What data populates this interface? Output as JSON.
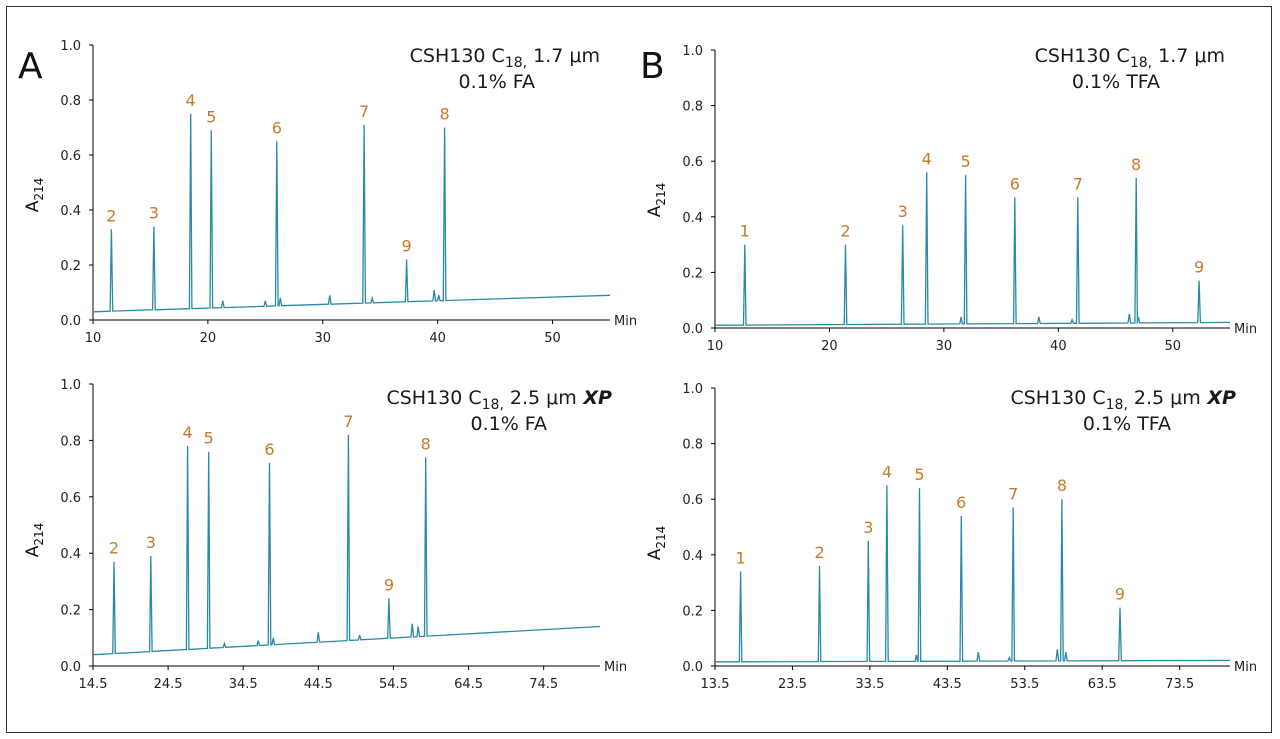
{
  "colors": {
    "trace": "#2a8aa3",
    "peak_label": "#c87a2a"
  },
  "chart_data": [
    {
      "type": "line",
      "panel_letter": "A",
      "annotation": {
        "column": "CSH130 C",
        "sub": "18,",
        "size": "1.7 μm",
        "xp": "",
        "modifier": "0.1% FA"
      },
      "xlabel": "Min",
      "ylabel": "A",
      "ylabel_sub": "214",
      "xlim": [
        10,
        55
      ],
      "ylim": [
        0,
        1
      ],
      "x_ticks": [
        10,
        20,
        30,
        40,
        50
      ],
      "y_ticks": [
        "0.0",
        "0.2",
        "0.4",
        "0.6",
        "0.8",
        "1.0"
      ],
      "baseline": [
        [
          10,
          0.03
        ],
        [
          55,
          0.09
        ]
      ],
      "peaks": [
        {
          "label": "2",
          "x": 11.6,
          "y": 0.33
        },
        {
          "label": "3",
          "x": 15.3,
          "y": 0.34
        },
        {
          "label": "4",
          "x": 18.5,
          "y": 0.75
        },
        {
          "label": "5",
          "x": 20.3,
          "y": 0.69
        },
        {
          "label": "6",
          "x": 26.0,
          "y": 0.65
        },
        {
          "label": "7",
          "x": 33.6,
          "y": 0.71
        },
        {
          "label": "9",
          "x": 37.3,
          "y": 0.22
        },
        {
          "label": "8",
          "x": 40.6,
          "y": 0.7
        }
      ],
      "minor_peaks": [
        [
          21.3,
          0.07
        ],
        [
          25.0,
          0.07
        ],
        [
          26.3,
          0.08
        ],
        [
          30.6,
          0.09
        ],
        [
          34.3,
          0.08
        ],
        [
          39.7,
          0.11
        ],
        [
          40.1,
          0.09
        ]
      ]
    },
    {
      "type": "line",
      "panel_letter": "B",
      "annotation": {
        "column": "CSH130 C",
        "sub": "18,",
        "size": "1.7 μm",
        "xp": "",
        "modifier": "0.1% TFA"
      },
      "xlabel": "Min",
      "ylabel": "A",
      "ylabel_sub": "214",
      "xlim": [
        10,
        55
      ],
      "ylim": [
        0,
        1
      ],
      "x_ticks": [
        10,
        20,
        30,
        40,
        50
      ],
      "y_ticks": [
        "0.0",
        "0.2",
        "0.4",
        "0.6",
        "0.8",
        "1.0"
      ],
      "baseline": [
        [
          10,
          0.01
        ],
        [
          55,
          0.02
        ]
      ],
      "peaks": [
        {
          "label": "1",
          "x": 12.6,
          "y": 0.3
        },
        {
          "label": "2",
          "x": 21.4,
          "y": 0.3
        },
        {
          "label": "3",
          "x": 26.4,
          "y": 0.37
        },
        {
          "label": "4",
          "x": 28.5,
          "y": 0.56
        },
        {
          "label": "5",
          "x": 31.9,
          "y": 0.55
        },
        {
          "label": "6",
          "x": 36.2,
          "y": 0.47
        },
        {
          "label": "7",
          "x": 41.7,
          "y": 0.47
        },
        {
          "label": "8",
          "x": 46.8,
          "y": 0.54
        },
        {
          "label": "9",
          "x": 52.3,
          "y": 0.17
        }
      ],
      "minor_peaks": [
        [
          31.5,
          0.04
        ],
        [
          38.3,
          0.04
        ],
        [
          41.2,
          0.03
        ],
        [
          46.2,
          0.05
        ],
        [
          47.0,
          0.04
        ]
      ]
    },
    {
      "type": "line",
      "panel_letter": "",
      "annotation": {
        "column": "CSH130 C",
        "sub": "18,",
        "size": "2.5 μm",
        "xp": "XP",
        "modifier": "0.1% FA"
      },
      "xlabel": "Min",
      "ylabel": "A",
      "ylabel_sub": "214",
      "xlim": [
        14.5,
        82
      ],
      "ylim": [
        0,
        1
      ],
      "x_ticks": [
        14.5,
        24.5,
        34.5,
        44.5,
        54.5,
        64.5,
        74.5
      ],
      "y_ticks": [
        "0.0",
        "0.2",
        "0.4",
        "0.6",
        "0.8",
        "1.0"
      ],
      "baseline": [
        [
          14.5,
          0.04
        ],
        [
          82,
          0.14
        ]
      ],
      "peaks": [
        {
          "label": "2",
          "x": 17.3,
          "y": 0.37
        },
        {
          "label": "3",
          "x": 22.2,
          "y": 0.39
        },
        {
          "label": "4",
          "x": 27.1,
          "y": 0.78
        },
        {
          "label": "5",
          "x": 29.9,
          "y": 0.76
        },
        {
          "label": "6",
          "x": 38.0,
          "y": 0.72
        },
        {
          "label": "7",
          "x": 48.5,
          "y": 0.82
        },
        {
          "label": "9",
          "x": 53.9,
          "y": 0.24
        },
        {
          "label": "8",
          "x": 58.8,
          "y": 0.74
        }
      ],
      "minor_peaks": [
        [
          32.0,
          0.08
        ],
        [
          36.5,
          0.09
        ],
        [
          38.5,
          0.1
        ],
        [
          44.5,
          0.12
        ],
        [
          50.0,
          0.11
        ],
        [
          57.0,
          0.15
        ],
        [
          57.8,
          0.14
        ]
      ]
    },
    {
      "type": "line",
      "panel_letter": "",
      "annotation": {
        "column": "CSH130 C",
        "sub": "18,",
        "size": "2.5 μm",
        "xp": "XP",
        "modifier": "0.1% TFA"
      },
      "xlabel": "Min",
      "ylabel": "A",
      "ylabel_sub": "214",
      "xlim": [
        13.5,
        80
      ],
      "ylim": [
        0,
        1
      ],
      "x_ticks": [
        13.5,
        23.5,
        33.5,
        43.5,
        53.5,
        63.5,
        73.5
      ],
      "y_ticks": [
        "0.0",
        "0.2",
        "0.4",
        "0.6",
        "0.8",
        "1.0"
      ],
      "baseline": [
        [
          13.5,
          0.015
        ],
        [
          80,
          0.02
        ]
      ],
      "peaks": [
        {
          "label": "1",
          "x": 16.8,
          "y": 0.34
        },
        {
          "label": "2",
          "x": 27.0,
          "y": 0.36
        },
        {
          "label": "3",
          "x": 33.3,
          "y": 0.45
        },
        {
          "label": "4",
          "x": 35.7,
          "y": 0.65
        },
        {
          "label": "5",
          "x": 39.9,
          "y": 0.64
        },
        {
          "label": "6",
          "x": 45.3,
          "y": 0.54
        },
        {
          "label": "7",
          "x": 52.0,
          "y": 0.57
        },
        {
          "label": "8",
          "x": 58.3,
          "y": 0.6
        },
        {
          "label": "9",
          "x": 65.8,
          "y": 0.21
        }
      ],
      "minor_peaks": [
        [
          39.5,
          0.04
        ],
        [
          47.5,
          0.05
        ],
        [
          51.5,
          0.03
        ],
        [
          57.7,
          0.06
        ],
        [
          58.8,
          0.05
        ]
      ]
    }
  ]
}
